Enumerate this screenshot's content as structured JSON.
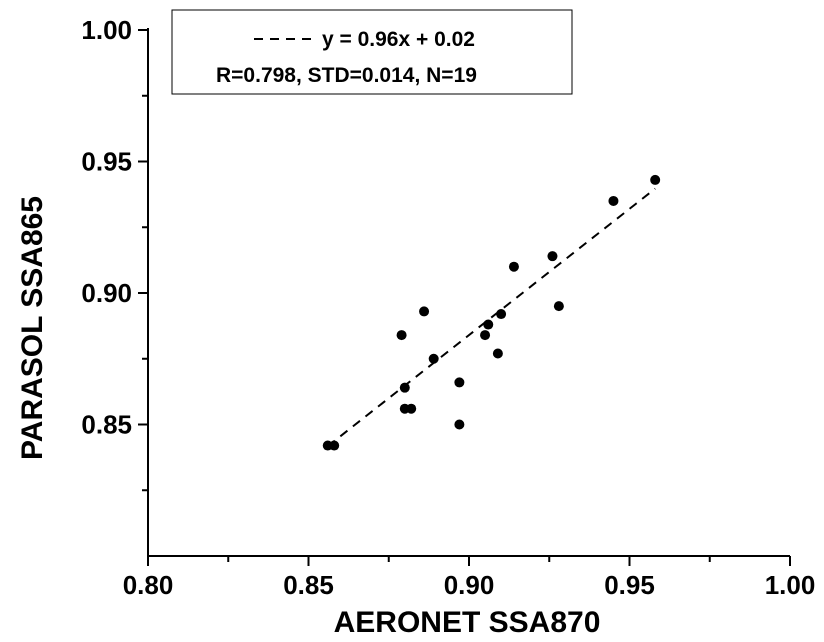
{
  "chart_data": {
    "type": "scatter",
    "xlabel": "AERONET SSA870",
    "ylabel": "PARASOL SSA865",
    "xlim": [
      0.8,
      1.0
    ],
    "ylim": [
      0.8,
      1.0
    ],
    "xticks": [
      "0.80",
      "0.85",
      "0.90",
      "0.95",
      "1.00"
    ],
    "yticks": [
      "0.85",
      "0.90",
      "0.95",
      "1.00"
    ],
    "grid": false,
    "legend_placement": "top-left",
    "legend": {
      "fit_label": "y = 0.96x + 0.02",
      "stats_label": "R=0.798, STD=0.014, N=19"
    },
    "fit_line": {
      "style": "dashed",
      "x_range": [
        0.856,
        0.958
      ]
    },
    "points": [
      {
        "x": 0.856,
        "y": 0.842
      },
      {
        "x": 0.858,
        "y": 0.842
      },
      {
        "x": 0.879,
        "y": 0.884
      },
      {
        "x": 0.88,
        "y": 0.864
      },
      {
        "x": 0.88,
        "y": 0.856
      },
      {
        "x": 0.882,
        "y": 0.856
      },
      {
        "x": 0.886,
        "y": 0.893
      },
      {
        "x": 0.889,
        "y": 0.875
      },
      {
        "x": 0.897,
        "y": 0.866
      },
      {
        "x": 0.897,
        "y": 0.85
      },
      {
        "x": 0.905,
        "y": 0.884
      },
      {
        "x": 0.906,
        "y": 0.888
      },
      {
        "x": 0.909,
        "y": 0.877
      },
      {
        "x": 0.91,
        "y": 0.892
      },
      {
        "x": 0.914,
        "y": 0.91
      },
      {
        "x": 0.926,
        "y": 0.914
      },
      {
        "x": 0.928,
        "y": 0.895
      },
      {
        "x": 0.945,
        "y": 0.935
      },
      {
        "x": 0.958,
        "y": 0.943
      }
    ],
    "marker_color": "#000000",
    "line_color": "#000000"
  }
}
